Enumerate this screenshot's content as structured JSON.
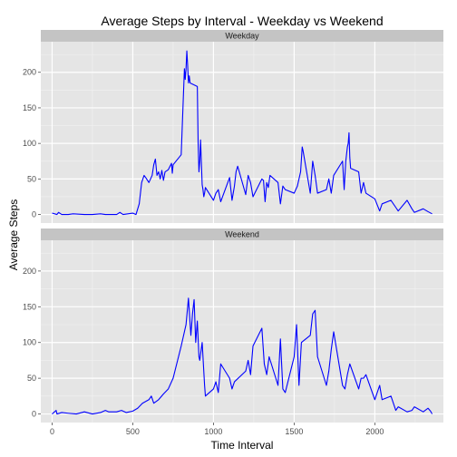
{
  "chart_data": {
    "type": "line",
    "title": "Average Steps by Interval - Weekday vs Weekend",
    "xlabel": "Time Interval",
    "ylabel": "Average Steps",
    "xlim": [
      -70,
      2425
    ],
    "ylim": [
      -12,
      243
    ],
    "x_ticks": [
      0,
      500,
      1000,
      1500,
      2000
    ],
    "y_ticks": [
      0,
      50,
      100,
      150,
      200
    ],
    "grid": true,
    "line_color": "#0000ff",
    "panel_background": "#e5e5e5",
    "strip_background": "#c4c4c4",
    "panels": [
      {
        "name": "Weekday",
        "x": [
          0,
          30,
          40,
          60,
          100,
          130,
          200,
          250,
          300,
          330,
          400,
          420,
          440,
          500,
          520,
          540,
          555,
          570,
          580,
          600,
          620,
          630,
          640,
          650,
          660,
          670,
          680,
          690,
          700,
          720,
          740,
          745,
          750,
          800,
          820,
          825,
          830,
          835,
          840,
          845,
          850,
          855,
          900,
          905,
          910,
          915,
          920,
          930,
          935,
          940,
          945,
          950,
          1000,
          1015,
          1030,
          1045,
          1100,
          1115,
          1130,
          1140,
          1150,
          1200,
          1215,
          1230,
          1245,
          1300,
          1310,
          1320,
          1330,
          1340,
          1350,
          1400,
          1415,
          1430,
          1445,
          1500,
          1520,
          1540,
          1550,
          1555,
          1600,
          1615,
          1630,
          1645,
          1700,
          1715,
          1730,
          1745,
          1800,
          1810,
          1820,
          1830,
          1835,
          1840,
          1845,
          1850,
          1900,
          1915,
          1930,
          1945,
          2000,
          2030,
          2045,
          2100,
          2130,
          2145,
          2200,
          2230,
          2245,
          2300,
          2330,
          2355
        ],
        "y": [
          2,
          0,
          3,
          0,
          0,
          1,
          0,
          0,
          1,
          0,
          0,
          3,
          0,
          2,
          0,
          15,
          45,
          55,
          52,
          45,
          55,
          70,
          78,
          55,
          60,
          50,
          62,
          48,
          60,
          63,
          72,
          58,
          70,
          84,
          205,
          190,
          205,
          230,
          210,
          185,
          195,
          185,
          180,
          100,
          60,
          75,
          105,
          42,
          35,
          25,
          30,
          38,
          20,
          30,
          35,
          18,
          52,
          20,
          40,
          60,
          68,
          28,
          55,
          45,
          25,
          50,
          48,
          18,
          45,
          38,
          55,
          45,
          15,
          40,
          35,
          30,
          40,
          60,
          95,
          90,
          30,
          75,
          55,
          30,
          35,
          50,
          30,
          55,
          75,
          35,
          75,
          95,
          100,
          115,
          80,
          65,
          60,
          30,
          45,
          30,
          22,
          5,
          15,
          20,
          10,
          5,
          20,
          8,
          3,
          8,
          4,
          1
        ],
        "interpolated": true
      },
      {
        "name": "Weekend",
        "x": [
          0,
          25,
          30,
          60,
          100,
          150,
          200,
          250,
          300,
          330,
          350,
          400,
          430,
          460,
          500,
          530,
          560,
          600,
          615,
          630,
          660,
          690,
          720,
          750,
          800,
          830,
          845,
          860,
          870,
          880,
          890,
          900,
          910,
          915,
          930,
          945,
          950,
          1000,
          1015,
          1030,
          1045,
          1100,
          1115,
          1130,
          1200,
          1215,
          1230,
          1245,
          1300,
          1315,
          1330,
          1345,
          1400,
          1415,
          1430,
          1445,
          1500,
          1515,
          1530,
          1545,
          1600,
          1615,
          1630,
          1645,
          1700,
          1715,
          1730,
          1745,
          1800,
          1815,
          1830,
          1845,
          1900,
          1915,
          1930,
          1945,
          2000,
          2030,
          2045,
          2100,
          2130,
          2145,
          2200,
          2230,
          2245,
          2300,
          2330,
          2345,
          2355
        ],
        "y": [
          0,
          5,
          0,
          2,
          1,
          0,
          3,
          0,
          2,
          5,
          3,
          3,
          5,
          2,
          4,
          8,
          15,
          20,
          25,
          15,
          20,
          28,
          35,
          50,
          95,
          125,
          162,
          110,
          140,
          160,
          100,
          130,
          80,
          75,
          100,
          40,
          25,
          35,
          45,
          30,
          70,
          50,
          35,
          45,
          60,
          75,
          55,
          95,
          120,
          70,
          55,
          80,
          40,
          105,
          35,
          30,
          80,
          125,
          40,
          100,
          110,
          140,
          145,
          80,
          40,
          60,
          90,
          115,
          40,
          35,
          55,
          70,
          35,
          50,
          50,
          55,
          20,
          40,
          20,
          25,
          5,
          10,
          3,
          5,
          10,
          3,
          8,
          4,
          0
        ],
        "interpolated": true
      }
    ]
  }
}
